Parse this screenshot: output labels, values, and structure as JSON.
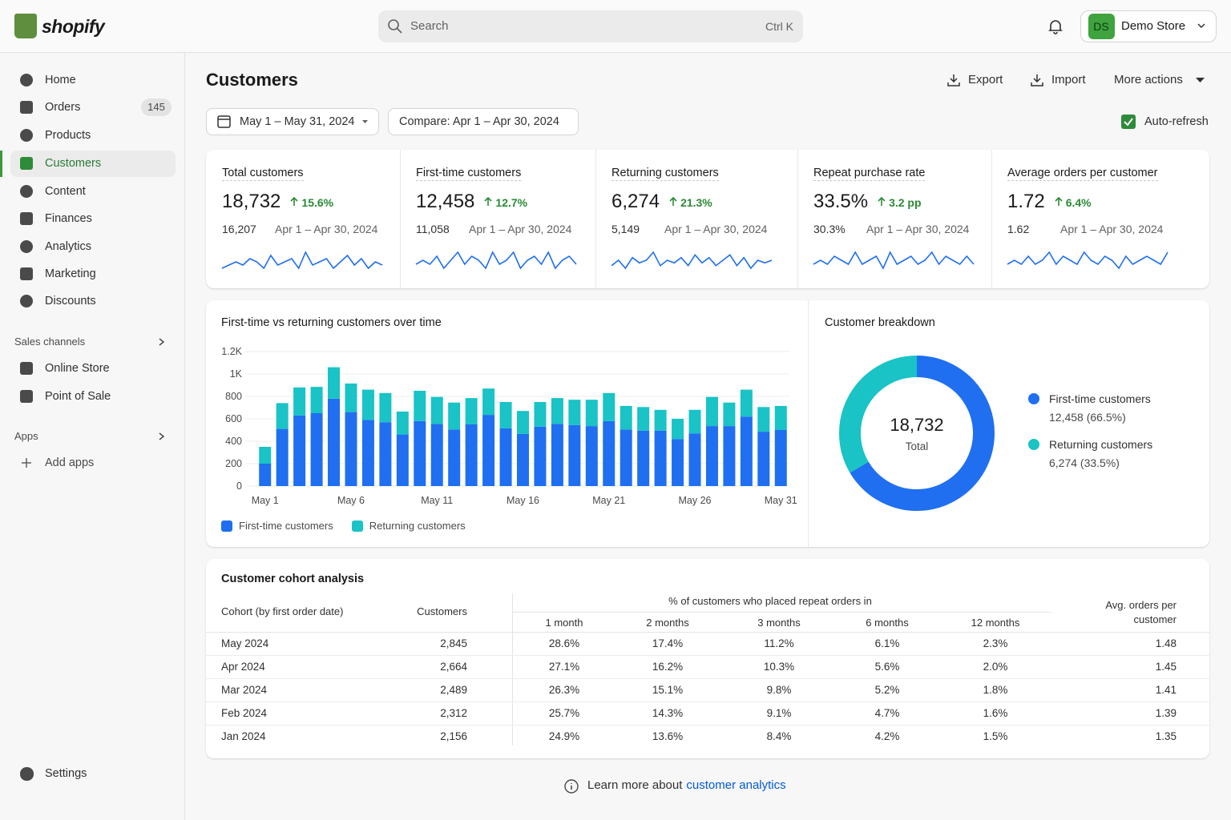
{
  "header": {
    "logo": "shopify",
    "search": "Search",
    "shortcut": "Ctrl K",
    "store_initials": "DS",
    "store": "Demo Store"
  },
  "nav": {
    "items": [
      {
        "label": "Home"
      },
      {
        "label": "Orders",
        "badge": "145"
      },
      {
        "label": "Products"
      },
      {
        "label": "Customers"
      },
      {
        "label": "Content"
      },
      {
        "label": "Finances"
      },
      {
        "label": "Analytics"
      },
      {
        "label": "Marketing"
      },
      {
        "label": "Discounts"
      }
    ],
    "sales_channels": "Sales channels",
    "channel_items": [
      "Online Store",
      "Point of Sale"
    ],
    "apps": "Apps",
    "add_apps": "Add apps",
    "settings": "Settings"
  },
  "page": {
    "title": "Customers",
    "actions": [
      "Export",
      "Import",
      "More actions"
    ],
    "date_range": "May 1 – May 31, 2024",
    "compare": "Compare: Apr 1 – Apr 30, 2024",
    "auto_refresh": "Auto-refresh"
  },
  "metrics": [
    {
      "label": "Total customers",
      "value": "18,732",
      "change": "15.6%",
      "previous": "16,207",
      "period": "Apr 1 – Apr 30, 2024",
      "sparkline": [
        3,
        4,
        5,
        4,
        6,
        5,
        3,
        7,
        4,
        5,
        6,
        3,
        8,
        4,
        5,
        6,
        3,
        5,
        7,
        4,
        6,
        3,
        5,
        4
      ]
    },
    {
      "label": "First-time customers",
      "value": "12,458",
      "change": "12.7%",
      "previous": "11,058",
      "period": "Apr 1 – Apr 30, 2024",
      "sparkline": [
        4,
        5,
        4,
        6,
        3,
        5,
        7,
        4,
        6,
        5,
        3,
        7,
        4,
        5,
        7,
        3,
        5,
        6,
        4,
        7,
        3,
        5,
        6,
        4
      ]
    },
    {
      "label": "Returning customers",
      "value": "6,274",
      "change": "21.3%",
      "previous": "5,149",
      "period": "Apr 1 – Apr 30, 2024",
      "sparkline": [
        3,
        5,
        2,
        6,
        4,
        5,
        8,
        3,
        5,
        4,
        6,
        3,
        7,
        4,
        6,
        3,
        5,
        7,
        3,
        6,
        2,
        5,
        4,
        5
      ]
    },
    {
      "label": "Repeat purchase rate",
      "value": "33.5%",
      "change": "3.2 pp",
      "previous": "30.3%",
      "period": "Apr 1 – Apr 30, 2024",
      "sparkline": [
        4,
        5,
        4,
        6,
        5,
        4,
        7,
        4,
        5,
        6,
        3,
        7,
        4,
        5,
        6,
        4,
        5,
        7,
        4,
        6,
        5,
        4,
        6,
        4
      ]
    },
    {
      "label": "Average orders per customer",
      "value": "1.72",
      "change": "6.4%",
      "previous": "1.62",
      "period": "Apr 1 – Apr 30, 2024",
      "sparkline": [
        4,
        5,
        4,
        6,
        4,
        5,
        7,
        4,
        6,
        5,
        4,
        7,
        5,
        4,
        6,
        5,
        3,
        6,
        4,
        5,
        6,
        5,
        4,
        7
      ]
    }
  ],
  "chart_data": [
    {
      "type": "bar",
      "stacked": true,
      "title": "First-time vs returning customers over time",
      "categories": [
        "May 1",
        null,
        null,
        null,
        null,
        "May 6",
        null,
        null,
        null,
        null,
        "May 11",
        null,
        null,
        null,
        null,
        "May 16",
        null,
        null,
        null,
        null,
        "May 21",
        null,
        null,
        null,
        null,
        "May 26",
        null,
        null,
        null,
        null,
        "May 31"
      ],
      "series": [
        {
          "name": "First-time customers",
          "color": "#1f6ff0",
          "values": [
            200,
            510,
            630,
            650,
            780,
            660,
            590,
            570,
            460,
            580,
            555,
            505,
            550,
            635,
            515,
            465,
            530,
            555,
            545,
            535,
            580,
            505,
            495,
            495,
            420,
            470,
            535,
            535,
            620,
            485,
            500
          ]
        },
        {
          "name": "Returning customers",
          "color": "#19c3c6",
          "values": [
            150,
            230,
            250,
            235,
            280,
            255,
            270,
            260,
            205,
            270,
            240,
            240,
            235,
            235,
            235,
            205,
            220,
            230,
            225,
            235,
            250,
            210,
            210,
            185,
            180,
            210,
            260,
            210,
            240,
            220,
            215
          ]
        }
      ],
      "ylim": [
        0,
        1200
      ],
      "yticks": [
        0,
        200,
        400,
        600,
        800,
        {
          "value": 1000,
          "label": "1K"
        },
        {
          "value": 1200,
          "label": "1.2K"
        }
      ],
      "grid": true,
      "legend": "bottom-left"
    },
    {
      "type": "donut",
      "title": "Customer breakdown",
      "center_value": "18,732",
      "center_label": "Total",
      "categories": [
        "First-time customers",
        "Returning customers"
      ],
      "values": [
        12458,
        6274
      ],
      "value_labels": [
        "12,458 (66.5%)",
        "6,274 (33.5%)"
      ],
      "colors": [
        "#1f6ff0",
        "#19c3c6"
      ],
      "legend": "right"
    }
  ],
  "cohort": {
    "title": "Customer cohort analysis",
    "columns": [
      "Cohort (by first order date)",
      "Customers",
      "1 month",
      "2 months",
      "3 months",
      "6 months",
      "12 months",
      "Avg. orders per customer"
    ],
    "group_header": "% of customers who placed repeat orders in",
    "rows": [
      [
        "May 2024",
        "2,845",
        "28.6%",
        "17.4%",
        "11.2%",
        "6.1%",
        "2.3%",
        "1.48"
      ],
      [
        "Apr 2024",
        "2,664",
        "27.1%",
        "16.2%",
        "10.3%",
        "5.6%",
        "2.0%",
        "1.45"
      ],
      [
        "Mar 2024",
        "2,489",
        "26.3%",
        "15.1%",
        "9.8%",
        "5.2%",
        "1.8%",
        "1.41"
      ],
      [
        "Feb 2024",
        "2,312",
        "25.7%",
        "14.3%",
        "9.1%",
        "4.7%",
        "1.6%",
        "1.39"
      ],
      [
        "Jan 2024",
        "2,156",
        "24.9%",
        "13.6%",
        "8.4%",
        "4.2%",
        "1.5%",
        "1.35"
      ]
    ]
  },
  "footer": {
    "text": "Learn more about",
    "link": "customer analytics"
  }
}
